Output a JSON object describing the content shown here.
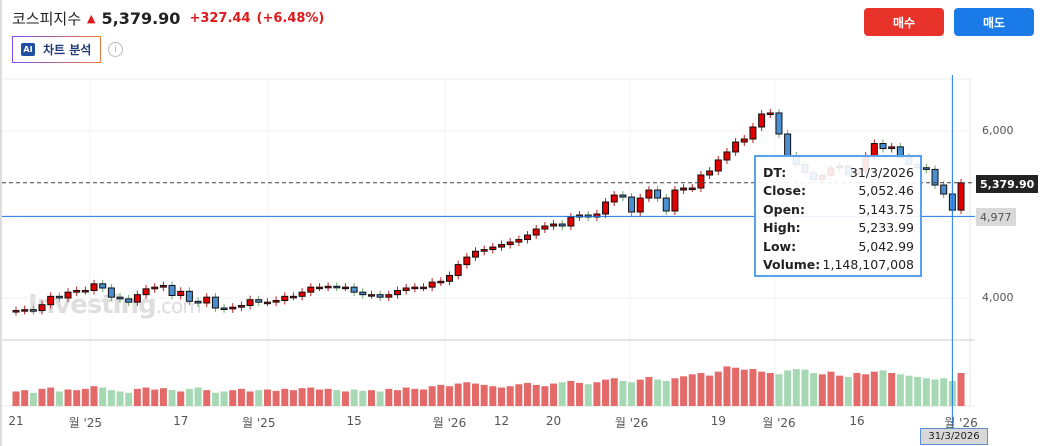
{
  "header": {
    "name": "코스피지수",
    "price": "5,379.90",
    "change": "+327.44",
    "change_pct": "(+6.48%)",
    "ai_label": "차트 분석",
    "ai_badge": "AI",
    "info": "i"
  },
  "actions": {
    "buy": "매수",
    "sell": "매도"
  },
  "colors": {
    "up": "#e00000",
    "down": "#4a90d0",
    "vol_up": "#e46a6a",
    "vol_down": "#a6d8b4",
    "accent": "#1a7ae8",
    "buy": "#e8332a"
  },
  "watermark": {
    "main": "Investing",
    "suffix": ".com"
  },
  "price_axis": {
    "ticks": [
      "6,000",
      "4,000"
    ],
    "current": "5,379.90",
    "crosshair": "4,977"
  },
  "tooltip": {
    "rows": [
      {
        "k": "DT:",
        "v": "31/3/2026"
      },
      {
        "k": "Close:",
        "v": "5,052.46"
      },
      {
        "k": "Open:",
        "v": "5,143.75"
      },
      {
        "k": "High:",
        "v": "5,233.99"
      },
      {
        "k": "Low:",
        "v": "5,042.99"
      },
      {
        "k": "Volume:",
        "v": "1,148,107,008"
      }
    ]
  },
  "crosshair_date": "31/3/2026",
  "chart_data": {
    "type": "candlestick",
    "ylim": [
      3500,
      6600
    ],
    "yticks": [
      4000,
      6000
    ],
    "current_price": 5379.9,
    "crosshair_price": 4977,
    "crosshair_index": 108,
    "x_labels": [
      {
        "i": 0,
        "t": "21"
      },
      {
        "i": 8,
        "t": "월 '25"
      },
      {
        "i": 19,
        "t": "17"
      },
      {
        "i": 28,
        "t": "월 '25"
      },
      {
        "i": 39,
        "t": "15"
      },
      {
        "i": 50,
        "t": "월 '26"
      },
      {
        "i": 56,
        "t": "12"
      },
      {
        "i": 62,
        "t": "20"
      },
      {
        "i": 71,
        "t": "월 '26"
      },
      {
        "i": 81,
        "t": "19"
      },
      {
        "i": 88,
        "t": "월 '26"
      },
      {
        "i": 97,
        "t": "16"
      },
      {
        "i": 109,
        "t": "월 '26"
      }
    ],
    "close": [
      3850,
      3860,
      3850,
      3920,
      4020,
      4000,
      4070,
      4090,
      4090,
      4170,
      4120,
      4010,
      3990,
      3950,
      4040,
      4110,
      4130,
      4150,
      4030,
      4080,
      3960,
      3940,
      4010,
      3880,
      3870,
      3890,
      3910,
      3980,
      3950,
      3950,
      3970,
      4020,
      4020,
      4070,
      4130,
      4130,
      4140,
      4130,
      4130,
      4070,
      4040,
      4040,
      4010,
      4040,
      4090,
      4120,
      4130,
      4130,
      4190,
      4200,
      4270,
      4400,
      4490,
      4560,
      4580,
      4610,
      4640,
      4670,
      4700,
      4754,
      4826,
      4862,
      4886,
      4862,
      4970,
      4994,
      4970,
      5006,
      5150,
      5233,
      5209,
      5030,
      5197,
      5293,
      5197,
      5042,
      5293,
      5317,
      5317,
      5473,
      5521,
      5653,
      5749,
      5868,
      5904,
      6048,
      6204,
      6216,
      5964,
      5700,
      5600,
      5500,
      5420,
      5470,
      5560,
      5580,
      5480,
      5520,
      5700,
      5850,
      5790,
      5810,
      5680,
      5600,
      5560,
      5540,
      5353,
      5245,
      5052.46,
      5379.9
    ],
    "volume_relative": [
      22,
      24,
      20,
      26,
      28,
      22,
      25,
      24,
      26,
      30,
      28,
      24,
      22,
      20,
      26,
      28,
      25,
      27,
      24,
      22,
      26,
      28,
      24,
      20,
      22,
      24,
      26,
      22,
      24,
      25,
      23,
      26,
      24,
      27,
      28,
      25,
      26,
      24,
      22,
      25,
      23,
      24,
      22,
      26,
      24,
      28,
      26,
      25,
      30,
      32,
      30,
      34,
      36,
      34,
      32,
      30,
      28,
      30,
      33,
      35,
      32,
      30,
      34,
      36,
      38,
      35,
      33,
      36,
      40,
      42,
      38,
      36,
      40,
      44,
      40,
      38,
      42,
      45,
      48,
      50,
      46,
      52,
      60,
      58,
      55,
      56,
      52,
      50,
      48,
      54,
      56,
      55,
      50,
      48,
      52,
      46,
      44,
      50,
      48,
      52,
      54,
      50,
      48,
      46,
      44,
      42,
      40,
      42,
      38,
      50
    ]
  }
}
